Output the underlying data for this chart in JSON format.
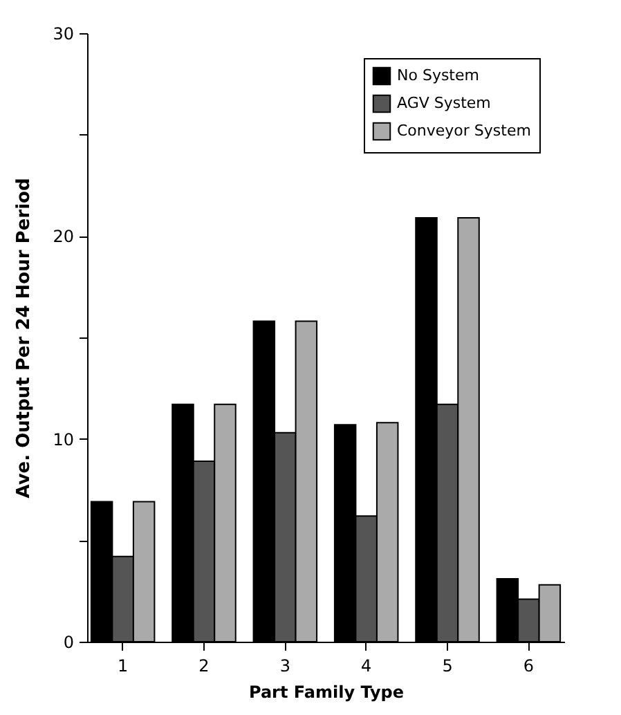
{
  "chart_data": {
    "type": "bar",
    "xlabel": "Part Family Type",
    "ylabel": "Ave. Output Per 24 Hour Period",
    "categories": [
      "1",
      "2",
      "3",
      "4",
      "5",
      "6"
    ],
    "series": [
      {
        "name": "No System",
        "color": "#000000",
        "values": [
          6.9,
          11.7,
          15.8,
          10.7,
          20.9,
          3.1
        ]
      },
      {
        "name": "AGV System",
        "color": "#555555",
        "values": [
          4.2,
          8.9,
          10.3,
          6.2,
          11.7,
          2.1
        ]
      },
      {
        "name": "Conveyor System",
        "color": "#aaaaaa",
        "values": [
          6.9,
          11.7,
          15.8,
          10.8,
          20.9,
          2.8
        ]
      }
    ],
    "ylim": [
      0,
      30
    ],
    "yticks": [
      0,
      {
        "value": 5,
        "label": null
      },
      10,
      {
        "value": 15,
        "label": null
      },
      20,
      {
        "value": 25,
        "label": null
      },
      30
    ],
    "legend": "top right",
    "grid": false
  }
}
